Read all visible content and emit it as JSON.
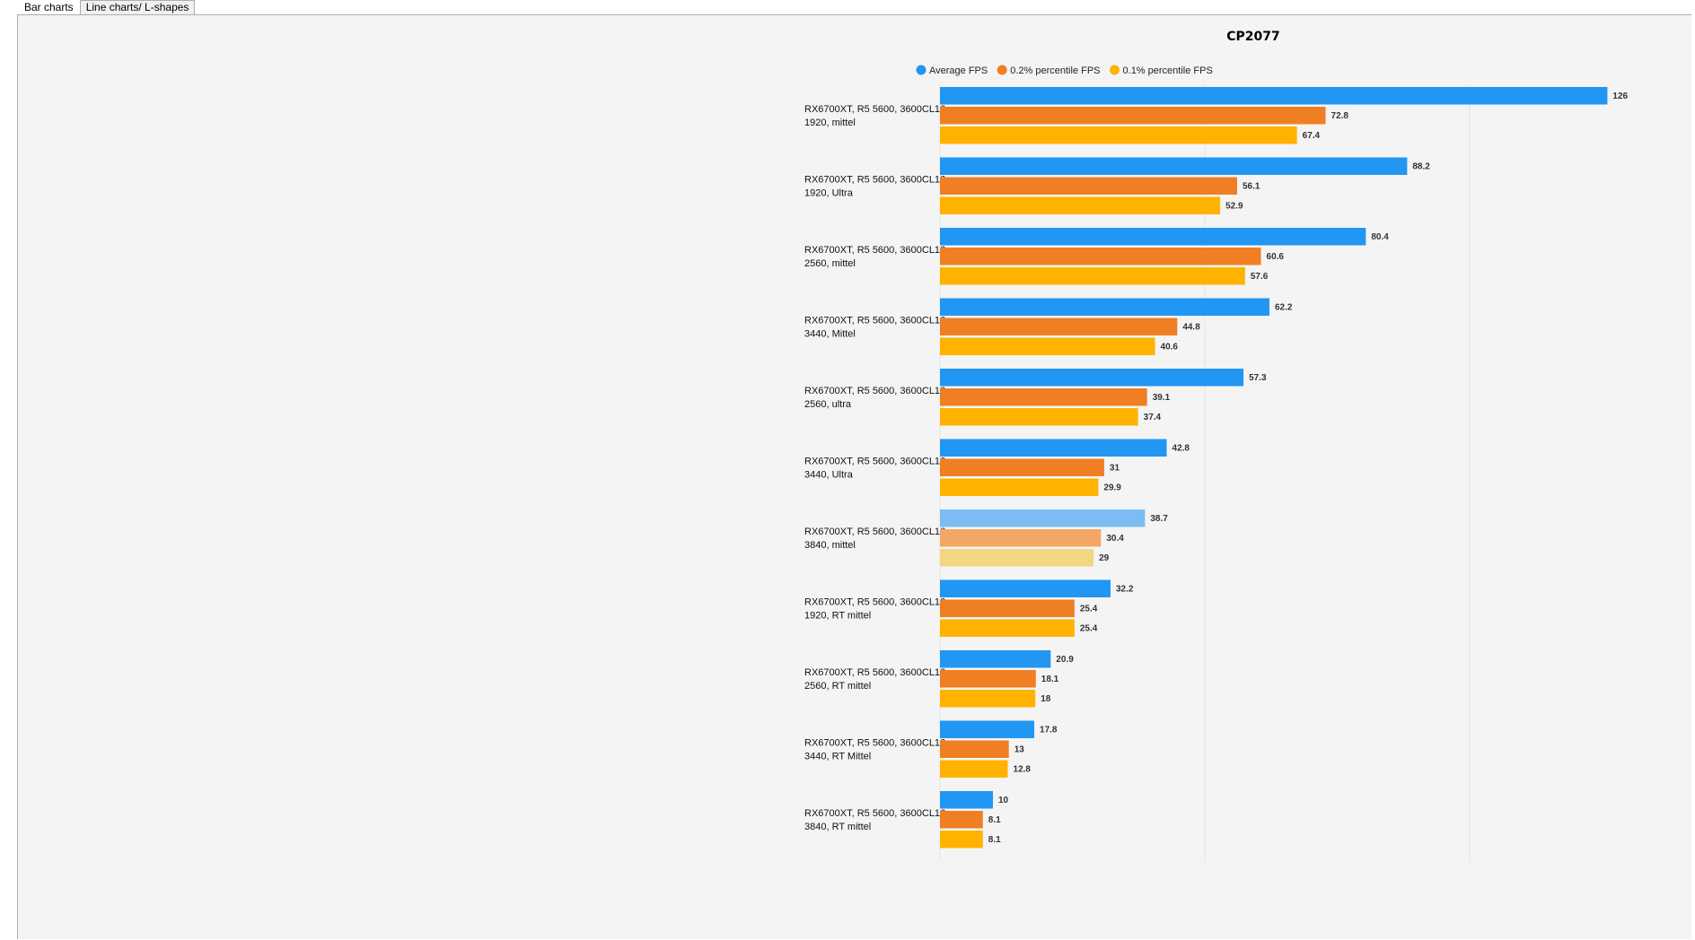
{
  "tabs": [
    {
      "label": "Bar charts",
      "active": true
    },
    {
      "label": "Line charts/ L-shapes",
      "active": false
    }
  ],
  "chart_data": {
    "type": "bar",
    "orientation": "horizontal",
    "title": "CP2077",
    "legend_position": "top",
    "xlim": [
      0,
      130
    ],
    "grid": true,
    "categories": [
      [
        "RX6700XT, R5 5600, 3600CL16",
        "1920, mittel"
      ],
      [
        "RX6700XT, R5 5600, 3600CL16",
        "1920, Ultra"
      ],
      [
        "RX6700XT, R5 5600, 3600CL16",
        "2560, mittel"
      ],
      [
        "RX6700XT, R5 5600, 3600CL16",
        "3440, Mittel"
      ],
      [
        "RX6700XT, R5 5600, 3600CL16",
        "2560, ultra"
      ],
      [
        "RX6700XT, R5 5600, 3600CL16",
        "3440, Ultra"
      ],
      [
        "RX6700XT, R5 5600, 3600CL16",
        "3840, mittel"
      ],
      [
        "RX6700XT, R5 5600, 3600CL16",
        "1920, RT mittel"
      ],
      [
        "RX6700XT, R5 5600, 3600CL16",
        "2560, RT mittel"
      ],
      [
        "RX6700XT, R5 5600, 3600CL16",
        "3440, RT Mittel"
      ],
      [
        "RX6700XT, R5 5600, 3600CL16",
        "3840, RT mittel"
      ]
    ],
    "highlighted_index": 6,
    "series": [
      {
        "name": "Average FPS",
        "color": "#2196f3",
        "faded_color": "#7bbdf3",
        "values": [
          126,
          88.2,
          80.4,
          62.2,
          57.3,
          42.8,
          38.7,
          32.2,
          20.9,
          17.8,
          10
        ]
      },
      {
        "name": "0.2% percentile FPS",
        "color": "#f07f24",
        "faded_color": "#f4a764",
        "values": [
          72.8,
          56.1,
          60.6,
          44.8,
          39.1,
          31,
          30.4,
          25.4,
          18.1,
          13,
          8.1
        ]
      },
      {
        "name": "0.1% percentile FPS",
        "color": "#ffb300",
        "faded_color": "#f3d682",
        "values": [
          67.4,
          52.9,
          57.6,
          40.6,
          37.4,
          29.9,
          29,
          25.4,
          18,
          12.8,
          8.1
        ]
      }
    ]
  }
}
